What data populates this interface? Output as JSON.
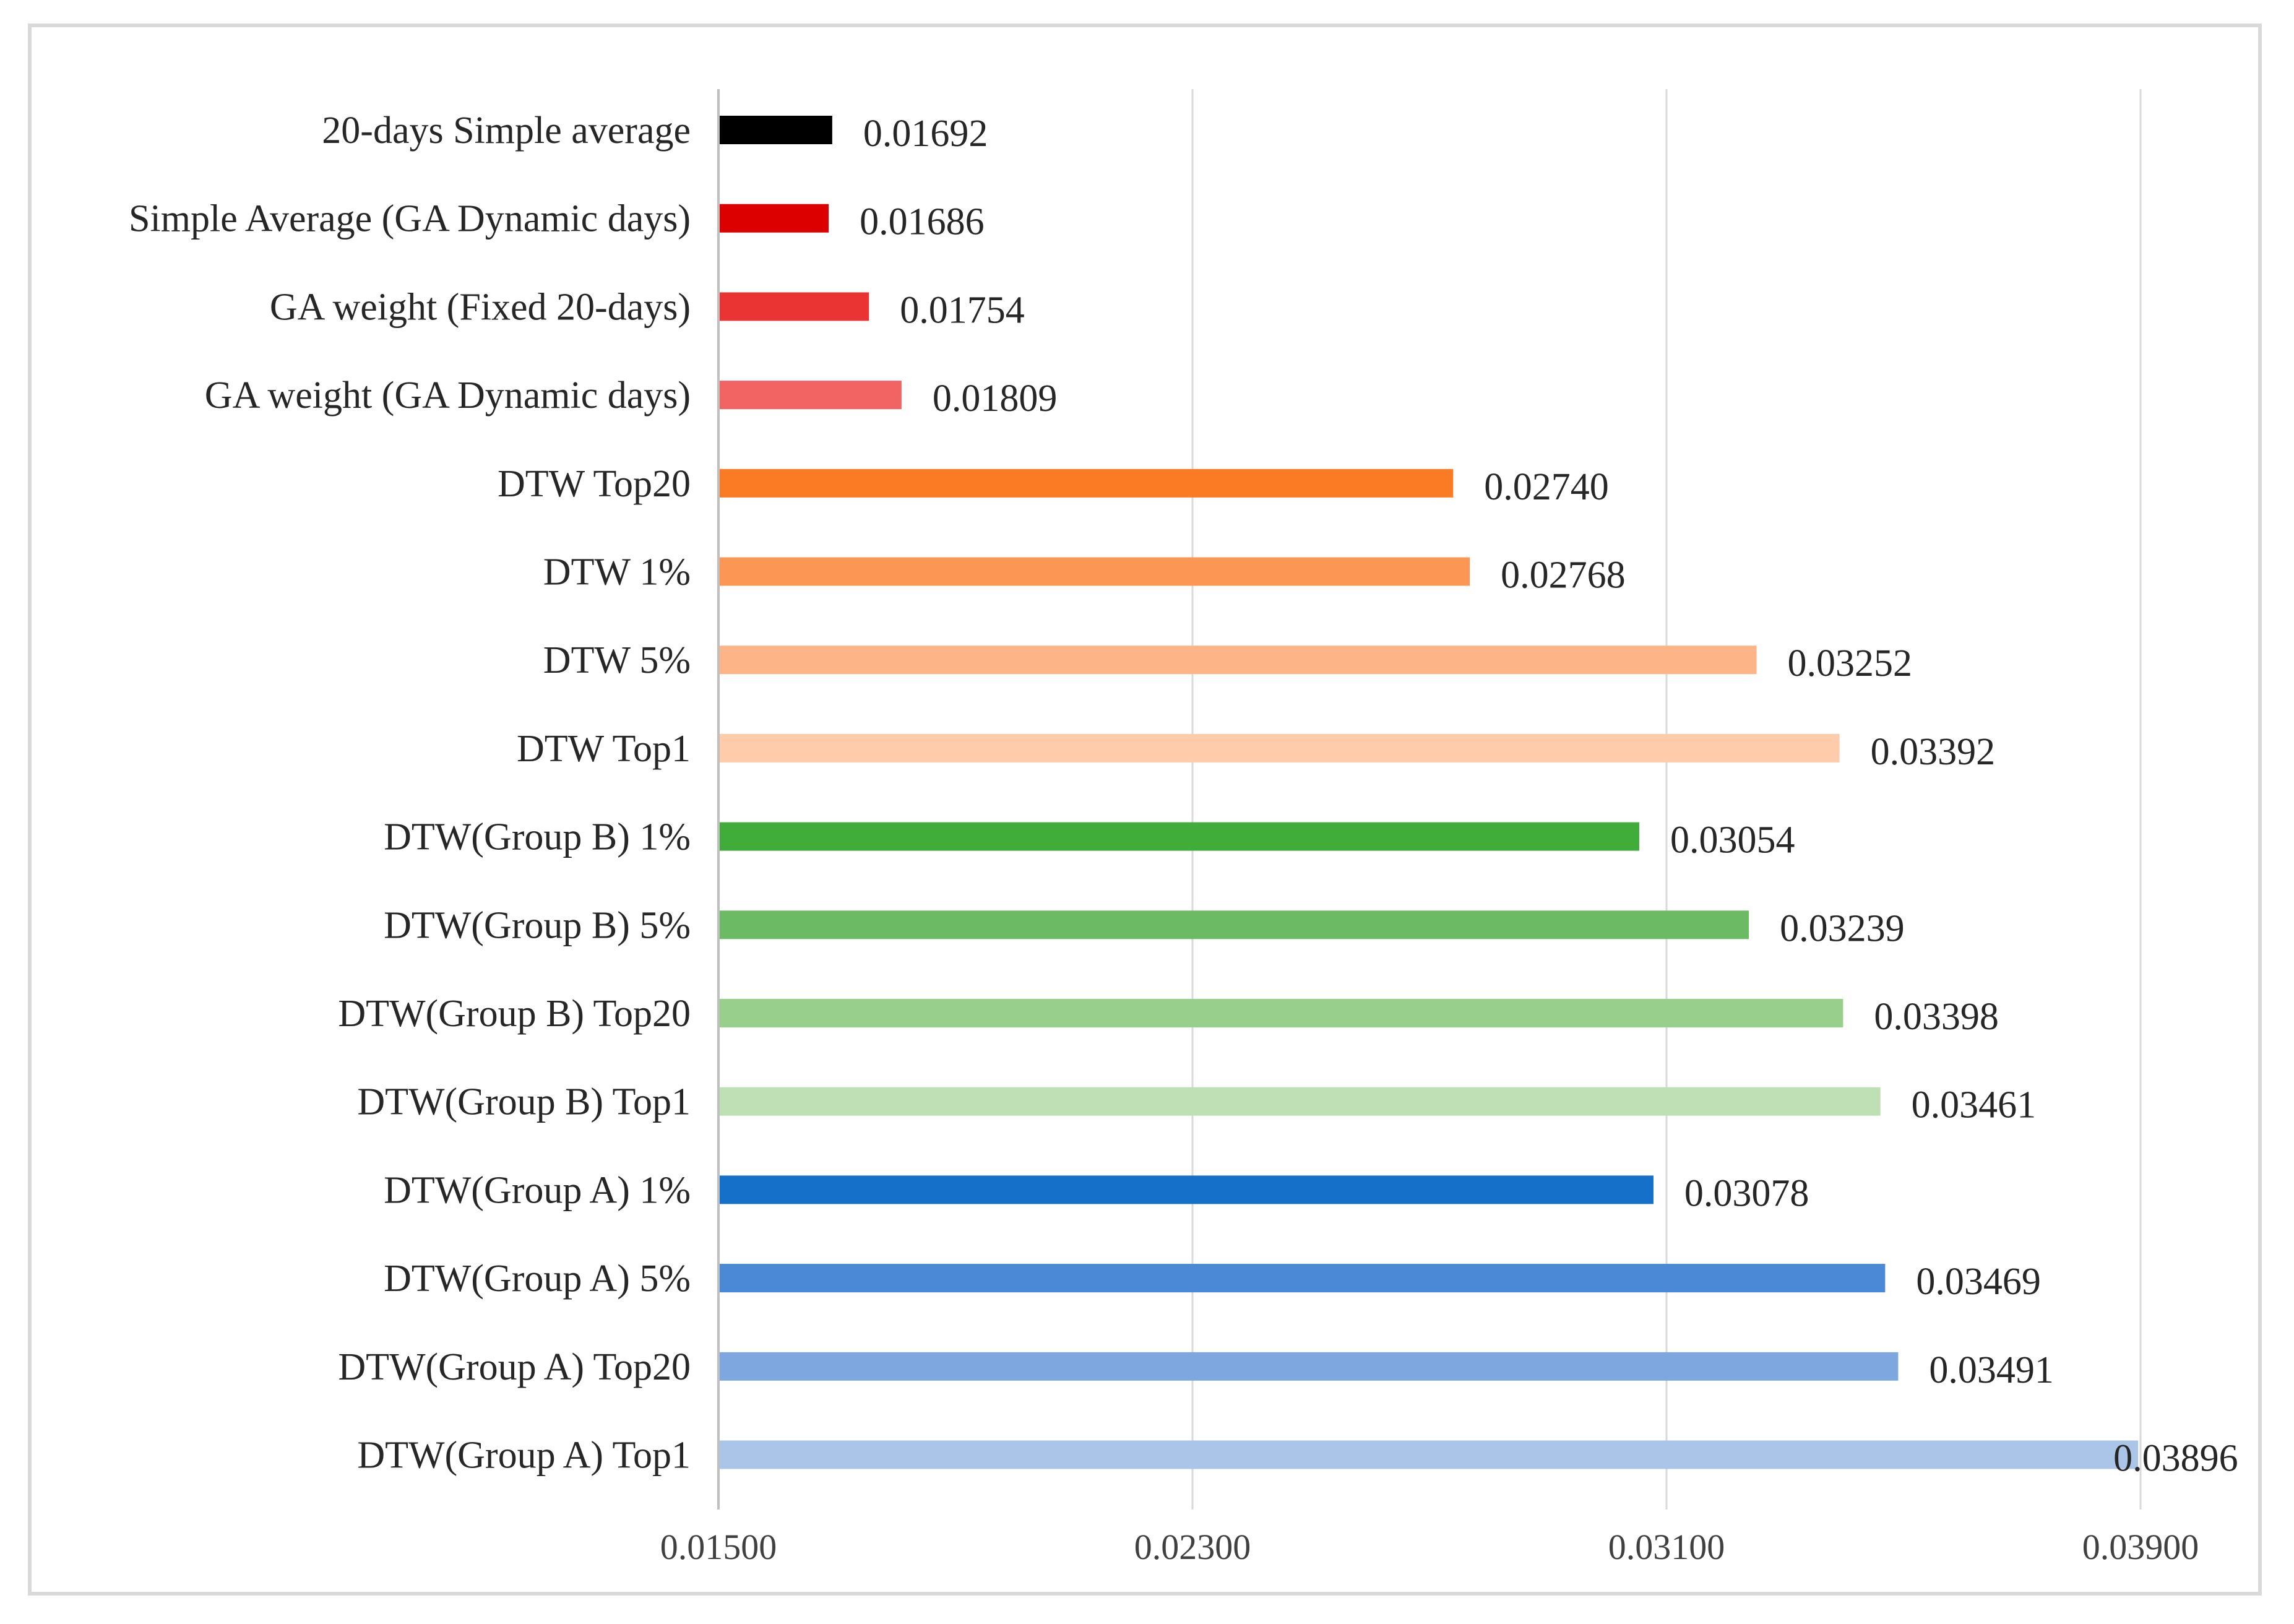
{
  "chart_data": {
    "type": "bar",
    "orientation": "horizontal",
    "title": "",
    "xlabel": "",
    "ylabel": "",
    "xlim": [
      0.015,
      0.039
    ],
    "x_ticks": [
      "0.01500",
      "0.02300",
      "0.03100",
      "0.03900"
    ],
    "x_tick_values": [
      0.015,
      0.023,
      0.031,
      0.039
    ],
    "grid": true,
    "legend": "none",
    "categories": [
      "20-days Simple average",
      "Simple Average (GA Dynamic days)",
      "GA weight (Fixed 20-days)",
      "GA weight (GA Dynamic days)",
      "DTW Top20",
      "DTW 1%",
      "DTW 5%",
      "DTW Top1",
      "DTW(Group B) 1%",
      "DTW(Group B) 5%",
      "DTW(Group B) Top20",
      "DTW(Group B) Top1",
      "DTW(Group A) 1%",
      "DTW(Group A) 5%",
      "DTW(Group A) Top20",
      "DTW(Group A) Top1"
    ],
    "values": [
      0.01692,
      0.01686,
      0.01754,
      0.01809,
      0.0274,
      0.02768,
      0.03252,
      0.03392,
      0.03054,
      0.03239,
      0.03398,
      0.03461,
      0.03078,
      0.03469,
      0.03491,
      0.03896
    ],
    "value_labels": [
      "0.01692",
      "0.01686",
      "0.01754",
      "0.01809",
      "0.02740",
      "0.02768",
      "0.03252",
      "0.03392",
      "0.03054",
      "0.03239",
      "0.03398",
      "0.03461",
      "0.03078",
      "0.03469",
      "0.03491",
      "0.03896"
    ],
    "colors": [
      "#000000",
      "#dd0000",
      "#ea3434",
      "#f26464",
      "#fb7b24",
      "#fc9655",
      "#fdb487",
      "#fecbab",
      "#40ad3b",
      "#6cba63",
      "#98cf8c",
      "#bfe0b5",
      "#1470c9",
      "#4b89d7",
      "#7ea7e0",
      "#abc5e8"
    ]
  }
}
